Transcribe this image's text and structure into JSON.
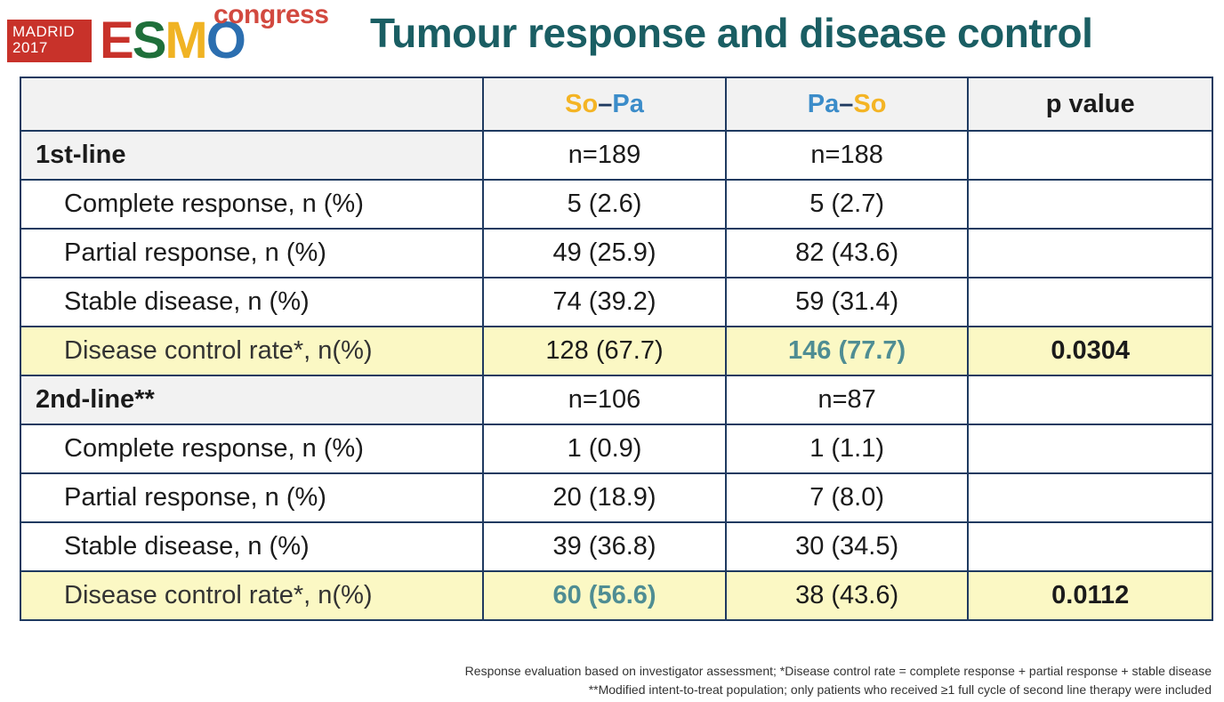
{
  "logo": {
    "city_line1": "MADRID",
    "city_line2": "2017",
    "brand_letters": [
      "E",
      "S",
      "M",
      "O"
    ],
    "brand_colors": [
      "#c8322a",
      "#1f6f3a",
      "#f0b323",
      "#2c6fb0"
    ],
    "congress": "congress"
  },
  "title": "Tumour response and disease control",
  "columns": {
    "arm1": {
      "part_a": "So",
      "dash": "–",
      "part_b": "Pa"
    },
    "arm2": {
      "part_a": "Pa",
      "dash": "–",
      "part_b": "So"
    },
    "p": "p value"
  },
  "sections": [
    {
      "label": "1st-line",
      "n1": "n=189",
      "n2": "n=188",
      "rows": [
        {
          "label": "Complete response, n (%)",
          "v1": "5 (2.6)",
          "v2": "5 (2.7)"
        },
        {
          "label": "Partial response, n (%)",
          "v1": "49 (25.9)",
          "v2": "82 (43.6)"
        },
        {
          "label": "Stable disease, n (%)",
          "v1": "74 (39.2)",
          "v2": "59 (31.4)"
        }
      ],
      "dcr": {
        "label": "Disease control rate*, n(%)",
        "v1": "128 (67.7)",
        "v2": "146 (77.7)",
        "p": "0.0304"
      }
    },
    {
      "label": "2nd-line**",
      "n1": "n=106",
      "n2": "n=87",
      "rows": [
        {
          "label": "Complete response, n (%)",
          "v1": "1 (0.9)",
          "v2": "1 (1.1)"
        },
        {
          "label": "Partial response, n (%)",
          "v1": "20 (18.9)",
          "v2": "7 (8.0)"
        },
        {
          "label": "Stable disease, n (%)",
          "v1": "39 (36.8)",
          "v2": "30 (34.5)"
        }
      ],
      "dcr": {
        "label": "Disease control rate*, n(%)",
        "v1": "60 (56.6)",
        "v2": "38 (43.6)",
        "p": "0.0112"
      }
    }
  ],
  "footnotes": [
    "Response evaluation based on investigator assessment; *Disease control rate = complete response + partial response + stable disease",
    "**Modified intent-to-treat population; only patients who received ≥1 full cycle of second line therapy were included"
  ],
  "colors": {
    "title": "#1a5e63",
    "border": "#1f3a60",
    "dcr_highlight": "#fbf8c4",
    "header_bg": "#f2f2f2",
    "arm_yellow": "#f4b424",
    "arm_blue": "#3b8cc9",
    "highlight_value": "#4f8d93"
  }
}
